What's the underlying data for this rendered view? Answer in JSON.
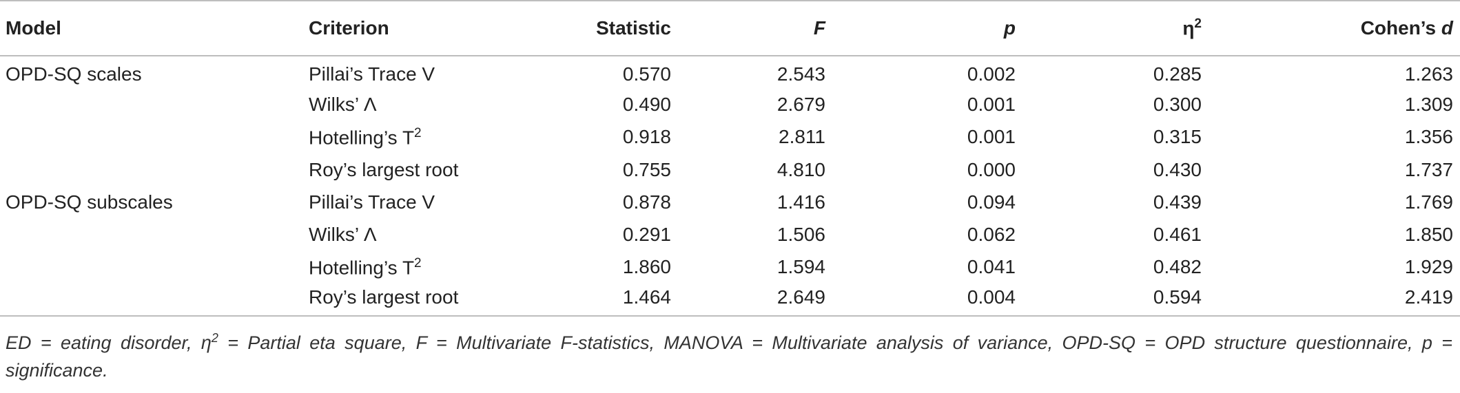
{
  "columns": {
    "model": "Model",
    "criterion": "Criterion",
    "statistic": "Statistic",
    "f": "F",
    "p": "p",
    "eta_base": "η",
    "eta_sup": "2",
    "cohens_d_text": "Cohen’s ",
    "cohens_d_italic": "d"
  },
  "rows": [
    {
      "model": "OPD-SQ scales",
      "criterion": "Pillai’s Trace V",
      "criterion_sup": "",
      "statistic": "0.570",
      "f": "2.543",
      "p": "0.002",
      "eta": "0.285",
      "d": "1.263"
    },
    {
      "model": "",
      "criterion": "Wilks’ Λ",
      "criterion_sup": "",
      "statistic": "0.490",
      "f": "2.679",
      "p": "0.001",
      "eta": "0.300",
      "d": "1.309"
    },
    {
      "model": "",
      "criterion": "Hotelling’s T",
      "criterion_sup": "2",
      "statistic": "0.918",
      "f": "2.811",
      "p": "0.001",
      "eta": "0.315",
      "d": "1.356"
    },
    {
      "model": "",
      "criterion": "Roy’s largest root",
      "criterion_sup": "",
      "statistic": "0.755",
      "f": "4.810",
      "p": "0.000",
      "eta": "0.430",
      "d": "1.737"
    },
    {
      "model": "OPD-SQ subscales",
      "criterion": "Pillai’s Trace V",
      "criterion_sup": "",
      "statistic": "0.878",
      "f": "1.416",
      "p": "0.094",
      "eta": "0.439",
      "d": "1.769"
    },
    {
      "model": "",
      "criterion": "Wilks’ Λ",
      "criterion_sup": "",
      "statistic": "0.291",
      "f": "1.506",
      "p": "0.062",
      "eta": "0.461",
      "d": "1.850"
    },
    {
      "model": "",
      "criterion": "Hotelling’s T",
      "criterion_sup": "2",
      "statistic": "1.860",
      "f": "1.594",
      "p": "0.041",
      "eta": "0.482",
      "d": "1.929"
    },
    {
      "model": "",
      "criterion": "Roy’s largest root",
      "criterion_sup": "",
      "statistic": "1.464",
      "f": "2.649",
      "p": "0.004",
      "eta": "0.594",
      "d": "2.419"
    }
  ],
  "footnote": {
    "part1": "ED = eating disorder, η",
    "part1_sup": "2",
    "part2": " = Partial eta square, F = Multivariate F-statistics, MANOVA = Multivariate analysis of variance, OPD-SQ = OPD structure questionnaire, p = significance."
  }
}
